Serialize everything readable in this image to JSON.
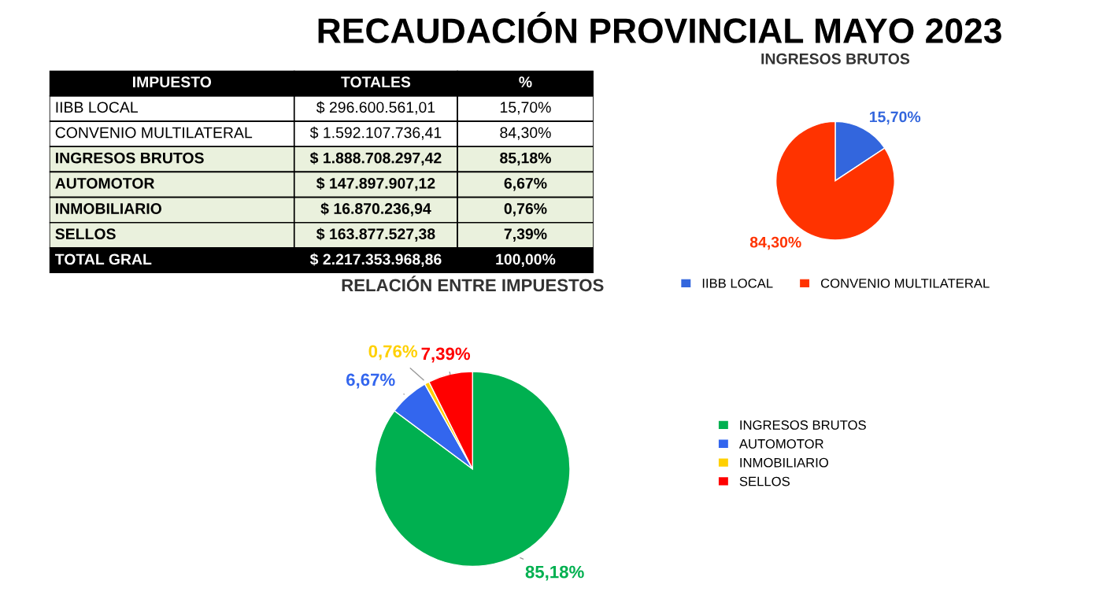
{
  "chart_data": [
    {
      "type": "other",
      "title": "RECAUDACIÓN PROVINCIAL MAYO 2023",
      "annotations": [
        "IMPUESTO",
        "TOTALES",
        "%",
        "IIBB LOCAL",
        "$ 296.600.561,01",
        "15,70%",
        "CONVENIO MULTILATERAL",
        "$ 1.592.107.736,41",
        "84,30%",
        "INGRESOS BRUTOS",
        "$ 1.888.708.297,42",
        "85,18%",
        "AUTOMOTOR",
        "$ 147.897.907,12",
        "6,67%",
        "INMOBILIARIO",
        "$ 16.870.236,94",
        "0,76%",
        "SELLOS",
        "$ 163.877.527,38",
        "7,39%",
        "TOTAL GRAL",
        "$ 2.217.353.968,86",
        "100,00%"
      ]
    },
    {
      "type": "pie",
      "title": "INGRESOS BRUTOS",
      "categories": [
        "IIBB LOCAL",
        "CONVENIO MULTILATERAL"
      ],
      "values": [
        15.7,
        84.3
      ],
      "colors": [
        "#3366dd",
        "#ff3300"
      ],
      "value_labels": [
        "15,70%",
        "84,30%"
      ],
      "legend": "bottom"
    },
    {
      "type": "pie",
      "title": "RELACIÓN ENTRE IMPUESTOS",
      "categories": [
        "INGRESOS BRUTOS",
        "AUTOMOTOR",
        "INMOBILIARIO",
        "SELLOS"
      ],
      "values": [
        85.18,
        6.67,
        0.76,
        7.39
      ],
      "colors": [
        "#00b050",
        "#3366ee",
        "#ffd000",
        "#ff0000"
      ],
      "value_labels": [
        "85,18%",
        "6,67%",
        "0,76%",
        "7,39%"
      ],
      "legend": "right"
    }
  ]
}
